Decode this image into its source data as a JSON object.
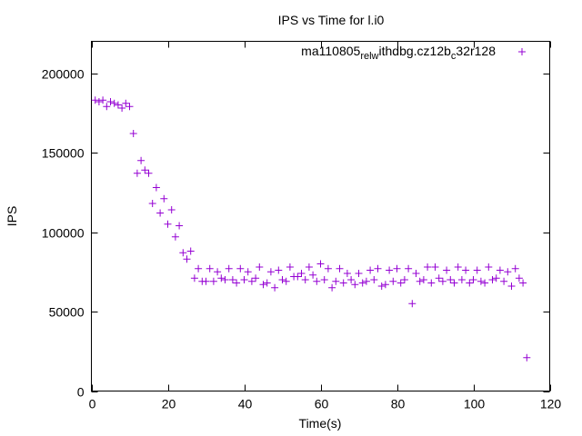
{
  "chart_data": {
    "type": "scatter",
    "title": "IPS vs Time for l.i0",
    "xlabel": "Time(s)",
    "ylabel": "IPS",
    "xlim": [
      0,
      120
    ],
    "ylim": [
      0,
      220000
    ],
    "xticks": [
      0,
      20,
      40,
      60,
      80,
      100,
      120
    ],
    "yticks": [
      0,
      50000,
      100000,
      150000,
      200000
    ],
    "xtick_labels": [
      "0",
      "20",
      "40",
      "60",
      "80",
      "100",
      "120"
    ],
    "ytick_labels": [
      "0",
      "50000",
      "100000",
      "150000",
      "200000"
    ],
    "grid": false,
    "legend_position": "top-right",
    "marker_color": "#9400d3",
    "series": [
      {
        "name": "ma110805_rel_withdbg.cz12b_c32r128",
        "legend_parts": [
          {
            "text": "ma110805",
            "sub": false
          },
          {
            "text": "rel",
            "sub": true
          },
          {
            "text": "w",
            "sub": true
          },
          {
            "text": "ithdbg.cz12b",
            "sub": false
          },
          {
            "text": "c",
            "sub": true
          },
          {
            "text": "32r128",
            "sub": false
          }
        ],
        "points": [
          [
            1,
            183000
          ],
          [
            2,
            182000
          ],
          [
            3,
            183000
          ],
          [
            4,
            179000
          ],
          [
            5,
            182000
          ],
          [
            6,
            181000
          ],
          [
            7,
            180000
          ],
          [
            8,
            178000
          ],
          [
            9,
            181000
          ],
          [
            10,
            179000
          ],
          [
            11,
            162000
          ],
          [
            12,
            137000
          ],
          [
            13,
            145000
          ],
          [
            14,
            139000
          ],
          [
            15,
            137000
          ],
          [
            16,
            118000
          ],
          [
            17,
            128000
          ],
          [
            18,
            112000
          ],
          [
            19,
            121000
          ],
          [
            20,
            105000
          ],
          [
            21,
            114000
          ],
          [
            22,
            97000
          ],
          [
            23,
            104000
          ],
          [
            24,
            87000
          ],
          [
            25,
            83000
          ],
          [
            26,
            88000
          ],
          [
            27,
            71000
          ],
          [
            28,
            77000
          ],
          [
            29,
            69000
          ],
          [
            30,
            69000
          ],
          [
            31,
            77000
          ],
          [
            32,
            69000
          ],
          [
            33,
            75000
          ],
          [
            34,
            71000
          ],
          [
            35,
            70000
          ],
          [
            36,
            77000
          ],
          [
            37,
            70000
          ],
          [
            38,
            68000
          ],
          [
            39,
            77000
          ],
          [
            40,
            70000
          ],
          [
            41,
            75000
          ],
          [
            42,
            69000
          ],
          [
            43,
            71000
          ],
          [
            44,
            78000
          ],
          [
            45,
            67000
          ],
          [
            46,
            68000
          ],
          [
            47,
            75000
          ],
          [
            48,
            65000
          ],
          [
            49,
            76000
          ],
          [
            50,
            70000
          ],
          [
            51,
            69000
          ],
          [
            52,
            78000
          ],
          [
            53,
            72000
          ],
          [
            54,
            72000
          ],
          [
            55,
            74000
          ],
          [
            56,
            70000
          ],
          [
            57,
            78000
          ],
          [
            58,
            73000
          ],
          [
            59,
            69000
          ],
          [
            60,
            80000
          ],
          [
            61,
            70000
          ],
          [
            62,
            77000
          ],
          [
            63,
            65000
          ],
          [
            64,
            69000
          ],
          [
            65,
            77000
          ],
          [
            66,
            68000
          ],
          [
            67,
            74000
          ],
          [
            68,
            70000
          ],
          [
            69,
            67000
          ],
          [
            70,
            74000
          ],
          [
            71,
            68000
          ],
          [
            72,
            69000
          ],
          [
            73,
            76000
          ],
          [
            74,
            70000
          ],
          [
            75,
            77000
          ],
          [
            76,
            66000
          ],
          [
            77,
            67000
          ],
          [
            78,
            76000
          ],
          [
            79,
            69000
          ],
          [
            80,
            77000
          ],
          [
            81,
            68000
          ],
          [
            82,
            70000
          ],
          [
            83,
            77000
          ],
          [
            84,
            55000
          ],
          [
            85,
            74000
          ],
          [
            86,
            69000
          ],
          [
            87,
            70000
          ],
          [
            88,
            78000
          ],
          [
            89,
            68000
          ],
          [
            90,
            78000
          ],
          [
            91,
            71000
          ],
          [
            92,
            69000
          ],
          [
            93,
            76000
          ],
          [
            94,
            70000
          ],
          [
            95,
            68000
          ],
          [
            96,
            78000
          ],
          [
            97,
            70000
          ],
          [
            98,
            76000
          ],
          [
            99,
            68000
          ],
          [
            100,
            70000
          ],
          [
            101,
            76000
          ],
          [
            102,
            69000
          ],
          [
            103,
            68000
          ],
          [
            104,
            78000
          ],
          [
            105,
            70000
          ],
          [
            106,
            71000
          ],
          [
            107,
            76000
          ],
          [
            108,
            69000
          ],
          [
            109,
            75000
          ],
          [
            110,
            66000
          ],
          [
            111,
            77000
          ],
          [
            112,
            71000
          ],
          [
            113,
            68000
          ],
          [
            114,
            21000
          ]
        ]
      }
    ]
  }
}
